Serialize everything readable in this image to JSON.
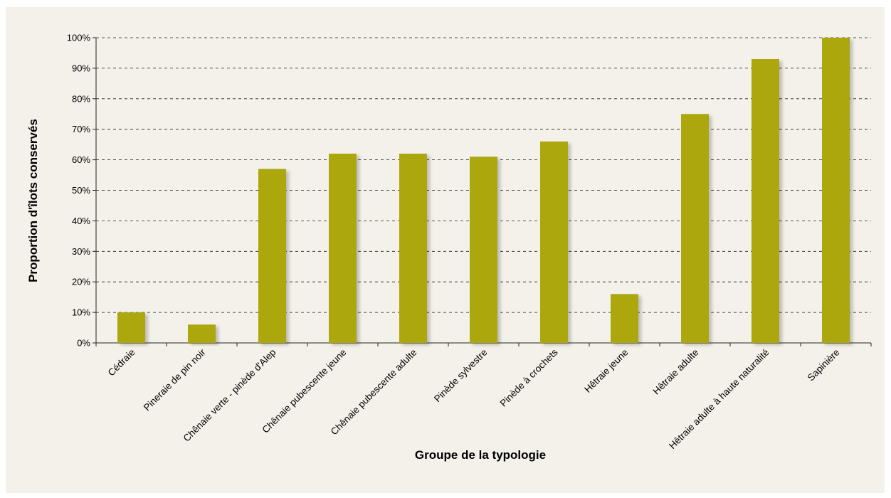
{
  "chart_data": {
    "type": "bar",
    "categories": [
      "Cédraie",
      "Pineraie de pin noir",
      "Chênaie verte - pinède d'Alep",
      "Chênaie pubescente jeune",
      "Chênaie pubescente adulte",
      "Pinède sylvestre",
      "Pinède à crochets",
      "Hêtraie jeune",
      "Hêtraie adulte",
      "Hêtraie adulte à haute naturalité",
      "Sapinière"
    ],
    "values": [
      10,
      6,
      57,
      62,
      62,
      61,
      66,
      16,
      75,
      93,
      100
    ],
    "xlabel": "Groupe de la typologie",
    "ylabel": "Proportion d'îlots conservés",
    "ylim": [
      0,
      100
    ],
    "yticks": [
      "0%",
      "10%",
      "20%",
      "30%",
      "40%",
      "50%",
      "60%",
      "70%",
      "80%",
      "90%",
      "100%"
    ],
    "grid": true,
    "legend": "none",
    "bar_color": "#aba70c",
    "background_color": "#f3f1ea"
  }
}
